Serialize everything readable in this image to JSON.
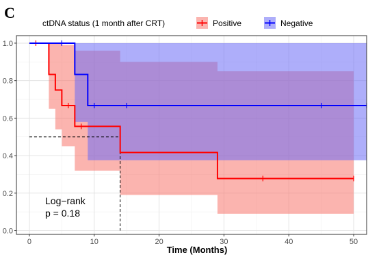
{
  "panel_label": "C",
  "legend": {
    "title": "ctDNA status (1 month after CRT)",
    "entries": [
      {
        "label": "Positive",
        "color": "#ff0000",
        "fill": "#f8766d"
      },
      {
        "label": "Negative",
        "color": "#0000ff",
        "fill": "#6c6cf5"
      }
    ]
  },
  "annotation": {
    "line1": "Log−rank",
    "line2": "p = 0.18"
  },
  "chart_data": {
    "type": "line",
    "subtype": "kaplan-meier",
    "title": "",
    "xlabel": "Time (Months)",
    "ylabel": "",
    "xlim": [
      -2,
      52
    ],
    "ylim": [
      -0.02,
      1.04
    ],
    "x_ticks": [
      0,
      10,
      20,
      30,
      40,
      50
    ],
    "y_ticks": [
      0.0,
      0.2,
      0.4,
      0.6,
      0.8,
      1.0
    ],
    "y_tick_labels": [
      "0.0",
      "0.2",
      "0.4",
      "0.6",
      "0.8",
      "1.0"
    ],
    "grid": true,
    "legend_position": "top",
    "series": [
      {
        "name": "Positive",
        "color": "#ff0000",
        "band_color": "#f8766d",
        "steps": [
          [
            0,
            1.0
          ],
          [
            3,
            0.833
          ],
          [
            4,
            0.75
          ],
          [
            5,
            0.667
          ],
          [
            7,
            0.556
          ],
          [
            14,
            0.417
          ],
          [
            29,
            0.278
          ],
          [
            50,
            0.278
          ]
        ],
        "ci_steps": [
          [
            0,
            1.0,
            1.0
          ],
          [
            3,
            0.65,
            1.0
          ],
          [
            4,
            0.54,
            1.0
          ],
          [
            5,
            0.45,
            0.99
          ],
          [
            7,
            0.32,
            0.96
          ],
          [
            14,
            0.19,
            0.9
          ],
          [
            29,
            0.09,
            0.85
          ],
          [
            50,
            0.09,
            0.85
          ]
        ],
        "censored": [
          [
            1,
            1.0
          ],
          [
            6,
            0.667
          ],
          [
            8,
            0.556
          ],
          [
            36,
            0.278
          ],
          [
            50,
            0.278
          ]
        ]
      },
      {
        "name": "Negative",
        "color": "#0000ff",
        "band_color": "#6c6cf5",
        "steps": [
          [
            0,
            1.0
          ],
          [
            7,
            0.833
          ],
          [
            9,
            0.667
          ],
          [
            52,
            0.667
          ]
        ],
        "ci_steps": [
          [
            0,
            1.0,
            1.0
          ],
          [
            7,
            0.58,
            1.0
          ],
          [
            9,
            0.375,
            1.0
          ],
          [
            52,
            0.375,
            1.0
          ]
        ],
        "censored": [
          [
            5,
            1.0
          ],
          [
            10,
            0.667
          ],
          [
            15,
            0.667
          ],
          [
            45,
            0.667
          ],
          [
            52,
            0.667
          ]
        ]
      }
    ],
    "median_guide": {
      "y": 0.5,
      "x": 14
    }
  }
}
